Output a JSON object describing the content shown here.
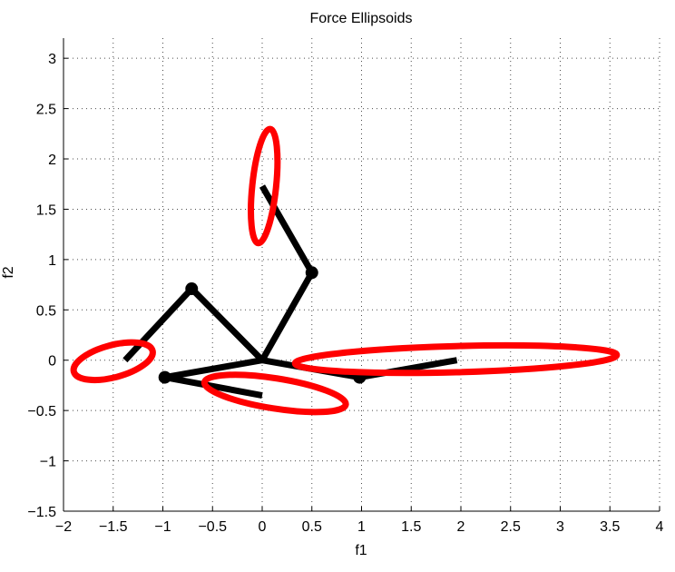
{
  "chart_data": {
    "type": "line",
    "title": "Force Ellipsoids",
    "xlabel": "f1",
    "ylabel": "f2",
    "xlim": [
      -2,
      4
    ],
    "ylim": [
      -1.5,
      3.2
    ],
    "grid": true,
    "x_ticks": [
      -2,
      -1.5,
      -1,
      -0.5,
      0,
      0.5,
      1,
      1.5,
      2,
      2.5,
      3,
      3.5,
      4
    ],
    "y_ticks": [
      -1.5,
      -1,
      -0.5,
      0,
      0.5,
      1,
      1.5,
      2,
      2.5,
      3
    ],
    "x_tick_labels": [
      "−2",
      "−1.5",
      "−1",
      "−0.5",
      "0",
      "0.5",
      "1",
      "1.5",
      "2",
      "2.5",
      "3",
      "3.5",
      "4"
    ],
    "y_tick_labels": [
      "−1.5",
      "−1",
      "−0.5",
      "0",
      "0.5",
      "1",
      "1.5",
      "2",
      "2.5",
      "3"
    ],
    "arms": [
      {
        "joints": [
          {
            "x": 0,
            "y": 0
          },
          {
            "x": 0.5,
            "y": 0.87
          }
        ],
        "end": {
          "x": 0.0,
          "y": 1.73
        }
      },
      {
        "joints": [
          {
            "x": 0,
            "y": 0
          },
          {
            "x": -0.71,
            "y": 0.71
          }
        ],
        "end": {
          "x": -1.38,
          "y": 0.0
        }
      },
      {
        "joints": [
          {
            "x": 0,
            "y": 0
          },
          {
            "x": -0.98,
            "y": -0.17
          }
        ],
        "end": {
          "x": 0.0,
          "y": -0.35
        }
      },
      {
        "joints": [
          {
            "x": 0,
            "y": 0
          },
          {
            "x": 0.98,
            "y": -0.17
          }
        ],
        "end": {
          "x": 1.96,
          "y": 0.0
        }
      }
    ],
    "ellipses": [
      {
        "cx": 0.02,
        "cy": 1.73,
        "rx": 0.12,
        "ry": 0.57,
        "angle_deg": -6
      },
      {
        "cx": -1.5,
        "cy": -0.01,
        "rx": 0.41,
        "ry": 0.16,
        "angle_deg": 15
      },
      {
        "cx": 0.13,
        "cy": -0.33,
        "rx": 0.72,
        "ry": 0.15,
        "angle_deg": -9
      },
      {
        "cx": 1.95,
        "cy": 0.01,
        "rx": 1.62,
        "ry": 0.13,
        "angle_deg": 1.5
      }
    ],
    "colors": {
      "arm": "#000000",
      "ellipse": "#ff0000",
      "grid": "#000000",
      "background": "#ffffff"
    }
  }
}
